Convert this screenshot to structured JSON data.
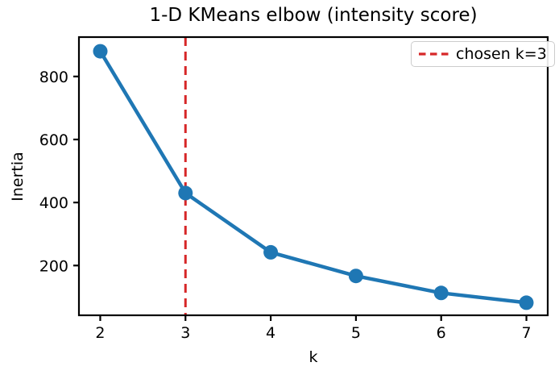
{
  "figure": {
    "background": "#ffffff",
    "frame_color": "#000000"
  },
  "chart_data": {
    "type": "line",
    "title": "1-D KMeans elbow (intensity score)",
    "xlabel": "k",
    "ylabel": "Inertia",
    "x": [
      2,
      3,
      4,
      5,
      6,
      7
    ],
    "y": [
      880,
      430,
      242,
      167,
      113,
      82
    ],
    "series_name": "inertia",
    "line_color": "#1f77b4",
    "marker": "circle",
    "x_ticks": [
      "2",
      "3",
      "4",
      "5",
      "6",
      "7"
    ],
    "x_tick_values": [
      2,
      3,
      4,
      5,
      6,
      7
    ],
    "y_ticks": [
      "200",
      "400",
      "600",
      "800"
    ],
    "y_tick_values": [
      200,
      400,
      600,
      800
    ],
    "xlim": [
      1.75,
      7.25
    ],
    "ylim": [
      42,
      925
    ],
    "grid": false,
    "vline": {
      "x": 3,
      "color": "#d62728",
      "style": "dashed",
      "label": "chosen k=3"
    },
    "legend": {
      "position": "upper right",
      "entries": [
        "chosen k=3"
      ]
    }
  }
}
